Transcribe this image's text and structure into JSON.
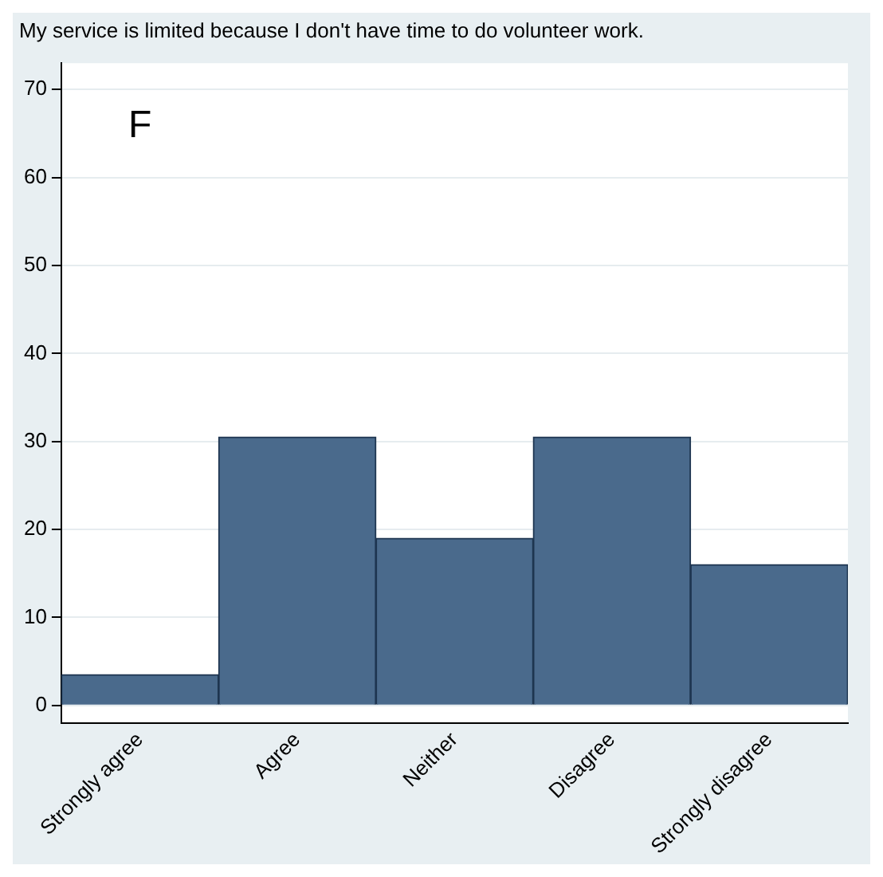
{
  "chart_data": {
    "type": "bar",
    "title": "My service is limited because I don't have time to do volunteer work.",
    "categories": [
      "Strongly agree",
      "Agree",
      "Neither",
      "Disagree",
      "Strongly disagree"
    ],
    "values": [
      3.5,
      30.5,
      19,
      30.5,
      16
    ],
    "color": "#4a6a8c",
    "ylim": [
      -2,
      73
    ],
    "yticks": [
      0,
      10,
      20,
      30,
      40,
      50,
      60,
      70
    ],
    "grid": "y",
    "annotations": [
      "F"
    ]
  }
}
